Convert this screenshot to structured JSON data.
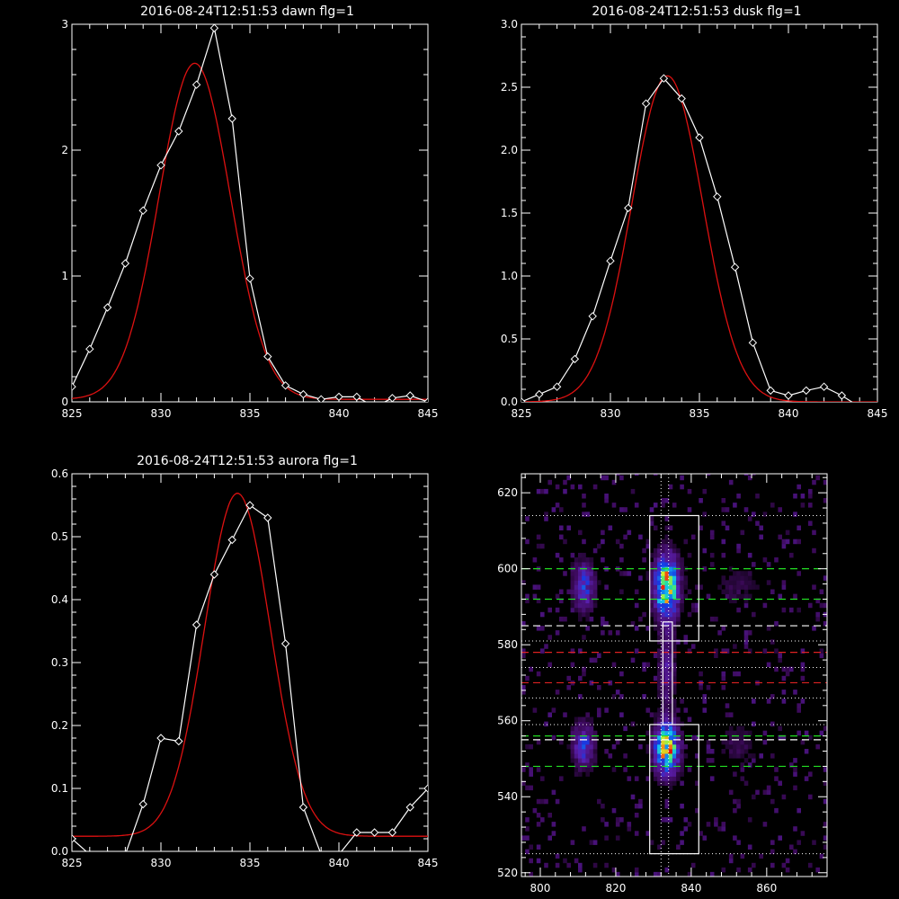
{
  "colors": {
    "background": "#000000",
    "axes": "#ffffff",
    "data_line": "#ffffff",
    "fit_line": "#dd1111",
    "guide_green": "#22dd22",
    "guide_red": "#dd2222",
    "guide_white": "#ffffff"
  },
  "chart_data": [
    {
      "type": "line",
      "title": "2016-08-24T12:51:53 dawn flg=1",
      "xlim": [
        825,
        845
      ],
      "ylim": [
        0,
        3
      ],
      "xticks": [
        825,
        830,
        835,
        840,
        845
      ],
      "yticks": [
        0,
        1,
        2,
        3
      ],
      "ytick_labels": [
        "0",
        "1",
        "2",
        "3"
      ],
      "series": [
        {
          "role": "data",
          "marker": "diamond",
          "x": [
            825,
            826,
            827,
            828,
            829,
            830,
            831,
            832,
            833,
            834,
            835,
            836,
            837,
            838,
            839,
            840,
            841,
            842,
            843,
            844,
            845
          ],
          "y": [
            0.12,
            0.42,
            0.75,
            1.1,
            1.52,
            1.88,
            2.15,
            2.52,
            2.97,
            2.25,
            0.98,
            0.36,
            0.13,
            0.06,
            0.02,
            0.04,
            0.04,
            -0.04,
            0.03,
            0.05,
            0.0
          ]
        },
        {
          "role": "fit",
          "gauss": {
            "amp": 2.67,
            "center": 831.9,
            "sigma": 2.0,
            "offset": 0.02
          }
        }
      ]
    },
    {
      "type": "line",
      "title": "2016-08-24T12:51:53 dusk flg=1",
      "xlim": [
        825,
        845
      ],
      "ylim": [
        0,
        3
      ],
      "xticks": [
        825,
        830,
        835,
        840,
        845
      ],
      "yticks": [
        0,
        0.5,
        1,
        1.5,
        2,
        2.5,
        3
      ],
      "ytick_labels": [
        "0.0",
        "0.5",
        "1.0",
        "1.5",
        "2.0",
        "2.5",
        "3.0"
      ],
      "series": [
        {
          "role": "data",
          "marker": "diamond",
          "x": [
            825,
            826,
            827,
            828,
            829,
            830,
            831,
            832,
            833,
            834,
            835,
            836,
            837,
            838,
            839,
            840,
            841,
            842,
            843,
            844
          ],
          "y": [
            0.0,
            0.06,
            0.12,
            0.34,
            0.68,
            1.12,
            1.54,
            2.37,
            2.57,
            2.41,
            2.1,
            1.63,
            1.07,
            0.47,
            0.09,
            0.05,
            0.09,
            0.12,
            0.05,
            -0.04
          ]
        },
        {
          "role": "fit",
          "gauss": {
            "amp": 2.59,
            "center": 833.2,
            "sigma": 2.0,
            "offset": 0.0
          }
        }
      ]
    },
    {
      "type": "line",
      "title": "2016-08-24T12:51:53 aurora flg=1",
      "xlim": [
        825,
        845
      ],
      "ylim": [
        0,
        0.6
      ],
      "xticks": [
        825,
        830,
        835,
        840,
        845
      ],
      "yticks": [
        0,
        0.1,
        0.2,
        0.3,
        0.4,
        0.5,
        0.6
      ],
      "ytick_labels": [
        "0.0",
        "0.1",
        "0.2",
        "0.3",
        "0.4",
        "0.5",
        "0.6"
      ],
      "series": [
        {
          "role": "data",
          "marker": "diamond",
          "x": [
            825,
            826,
            827,
            828,
            829,
            830,
            831,
            832,
            833,
            834,
            835,
            836,
            837,
            838,
            839,
            840,
            841,
            842,
            843,
            844,
            845
          ],
          "y": [
            0.02,
            -0.005,
            -0.005,
            -0.005,
            0.075,
            0.18,
            0.175,
            0.36,
            0.44,
            0.495,
            0.55,
            0.53,
            0.33,
            0.07,
            -0.005,
            -0.005,
            0.03,
            0.03,
            0.03,
            0.07,
            0.1
          ]
        },
        {
          "role": "fit",
          "gauss": {
            "amp": 0.545,
            "center": 834.3,
            "sigma": 1.85,
            "offset": 0.024
          }
        }
      ]
    },
    {
      "type": "heatmap",
      "title": "",
      "xlim": [
        795,
        876
      ],
      "ylim": [
        519,
        625
      ],
      "xticks": [
        800,
        820,
        840,
        860
      ],
      "yticks": [
        520,
        540,
        560,
        580,
        600,
        620
      ],
      "ytick_labels": [
        "520",
        "540",
        "560",
        "580",
        "600",
        "620"
      ],
      "blobs": [
        {
          "x": 833,
          "y": 595,
          "sx": 2.2,
          "sy": 5.5,
          "amp": 1.0
        },
        {
          "x": 833,
          "y": 552,
          "sx": 2.2,
          "sy": 4.5,
          "amp": 1.0
        },
        {
          "x": 811,
          "y": 595,
          "sx": 2.0,
          "sy": 4.5,
          "amp": 0.45
        },
        {
          "x": 811,
          "y": 553,
          "sx": 2.0,
          "sy": 4.0,
          "amp": 0.45
        },
        {
          "x": 833,
          "y": 573,
          "sx": 1.5,
          "sy": 8.0,
          "amp": 0.28
        },
        {
          "x": 852,
          "y": 595,
          "sx": 4.0,
          "sy": 4.0,
          "amp": 0.12
        },
        {
          "x": 852,
          "y": 553,
          "sx": 4.0,
          "sy": 4.0,
          "amp": 0.12
        }
      ],
      "boxes": [
        {
          "x0": 829,
          "x1": 842,
          "y0": 581,
          "y1": 614
        },
        {
          "x0": 829,
          "x1": 842,
          "y0": 525,
          "y1": 559
        },
        {
          "x0": 832.5,
          "x1": 835,
          "y0": 559,
          "y1": 586
        }
      ],
      "hlines_white_dotted": [
        614,
        581,
        574,
        566,
        559,
        525
      ],
      "hlines_green_dashed": [
        600,
        592,
        556,
        548
      ],
      "hlines_red_dashed": [
        578,
        570
      ],
      "hlines_white_dashed": [
        585,
        555
      ],
      "vlines_white_dotted": [
        832,
        834
      ]
    }
  ]
}
